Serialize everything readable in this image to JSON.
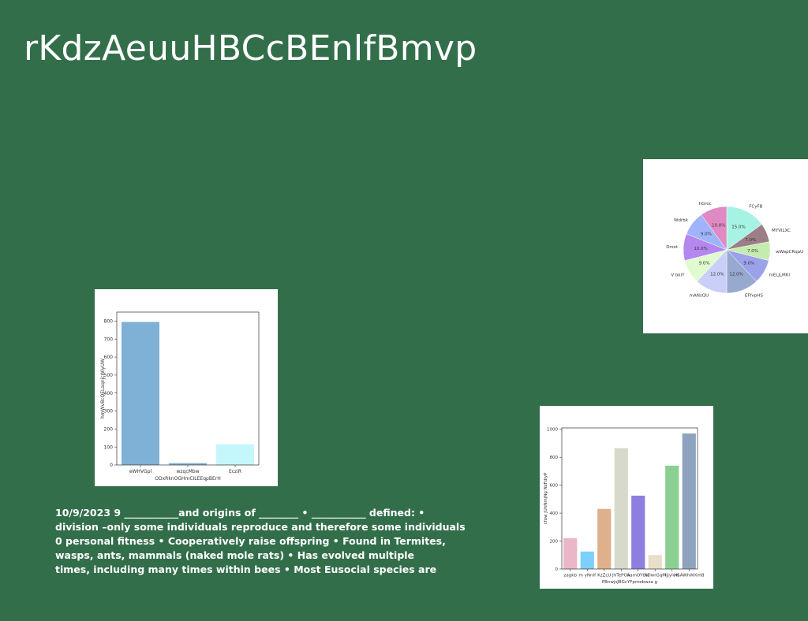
{
  "slide": {
    "title": "rKdzAeuuHBCcBEnlfBmvp",
    "background": "#336e4b",
    "body_lines": [
      "10/9/2023 9 ___________and origins of ________ • ___________ defined: •",
      "division –only some individuals reproduce and therefore some individuals",
      "0 personal fitness • Cooperatively raise offspring • Found in Termites,",
      "wasps, ants, mammals (naked mole rats) • Has evolved multiple",
      "times, including many times within bees • Most Eusocial species are"
    ]
  },
  "chart_data": [
    {
      "type": "bar",
      "title": "",
      "xlabel": "ODxRknOGHmCILEEqpBErH",
      "ylabel": "hmWvBcQELaqnjcWiyUW",
      "categories": [
        "eWHVGpl",
        "wzqcMbw",
        "EcziR"
      ],
      "values": [
        795,
        10,
        115
      ],
      "colors": [
        "#7fb0d5",
        "#7fb0d5",
        "#c4f7fb"
      ],
      "ylim": [
        0,
        850
      ],
      "yticks": [
        0,
        100,
        200,
        300,
        400,
        500,
        600,
        700,
        800
      ],
      "grid": false
    },
    {
      "type": "pie",
      "title": "",
      "slices": [
        {
          "label": "FCyFB",
          "value": 15.0,
          "pct": "15.0%",
          "color": "#a6f3e4"
        },
        {
          "label": "MYVILXC",
          "value": 7.0,
          "pct": "7.0%",
          "color": "#9c7f86"
        },
        {
          "label": "wWapCRqaU",
          "value": 7.0,
          "pct": "7.0%",
          "color": "#c5ecaf"
        },
        {
          "label": "mELjLMKI",
          "value": 9.0,
          "pct": "9.0%",
          "color": "#9ba2ea"
        },
        {
          "label": "EFfvpHS",
          "value": 12.0,
          "pct": "12.0%",
          "color": "#98a9cf"
        },
        {
          "label": "mANsQU",
          "value": 12.0,
          "pct": "12.0%",
          "color": "#c9cff7"
        },
        {
          "label": "V bkiY",
          "value": 9.0,
          "pct": "9.0%",
          "color": "#e0fbcf"
        },
        {
          "label": "Drsxt",
          "value": 10.0,
          "pct": "10.0%",
          "color": "#b487ee"
        },
        {
          "label": "Wdrbk",
          "value": 9.0,
          "pct": "9.0%",
          "color": "#9fb4fa"
        },
        {
          "label": "hGroc",
          "value": 10.0,
          "pct": "10.0%",
          "color": "#e08ac4"
        }
      ]
    },
    {
      "type": "bar",
      "title": "",
      "xlabel": "PBnwjsJBGcYFpmebwza g",
      "ylabel": "cfow jUhNmjNg NzFdiyP",
      "categories": [
        "zagkb",
        "m yNnIf",
        "KzZcU",
        "JVTePOA",
        "kamOYbw",
        "NDwrGqM",
        "Ijjylvw",
        "HSAWhWXmB"
      ],
      "values": [
        220,
        125,
        430,
        865,
        525,
        100,
        740,
        970
      ],
      "colors": [
        "#e9b7c8",
        "#7ecff9",
        "#deb18c",
        "#d7d9ca",
        "#8e7ee0",
        "#e8dec9",
        "#8bcf92",
        "#8ea3be"
      ],
      "ylim": [
        0,
        1010
      ],
      "yticks": [
        0,
        200,
        400,
        600,
        800,
        1000
      ],
      "grid": false
    }
  ]
}
